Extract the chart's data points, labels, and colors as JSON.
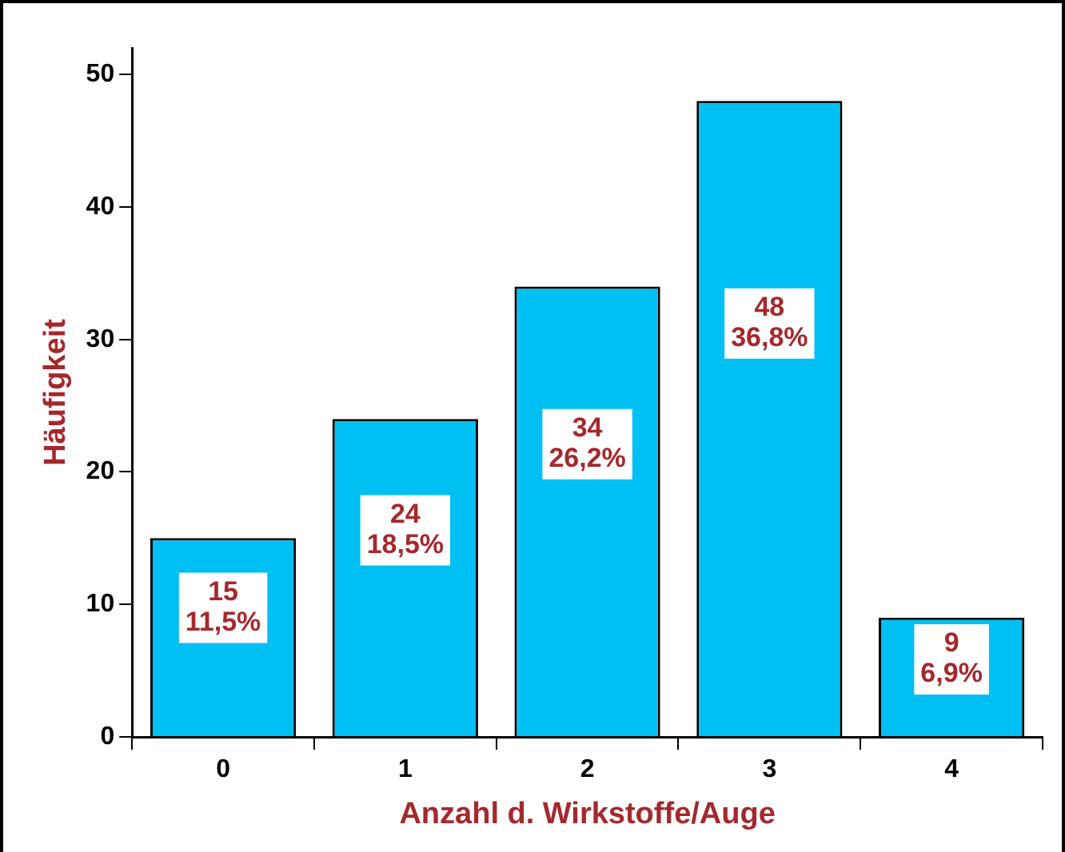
{
  "chart_data": {
    "type": "bar",
    "xlabel": "Anzahl d. Wirkstoffe/Auge",
    "ylabel": "Häufigkeit",
    "categories": [
      "0",
      "1",
      "2",
      "3",
      "4"
    ],
    "values": [
      15,
      24,
      34,
      48,
      9
    ],
    "value_labels": [
      "15\n11,5%",
      "24\n18,5%",
      "34\n26,2%",
      "48\n36,8%",
      "9\n6,9%"
    ],
    "color": "#00bff3",
    "ylim": [
      0,
      52
    ],
    "yticks": [
      0,
      10,
      20,
      30,
      40,
      50
    ],
    "grid": false,
    "legend": false
  }
}
